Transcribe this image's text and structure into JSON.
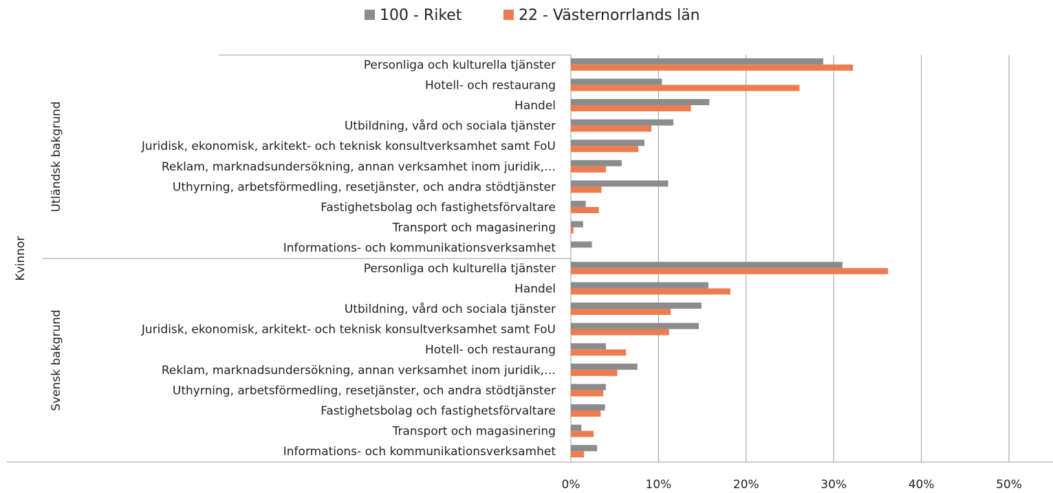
{
  "chart_data": {
    "type": "bar",
    "orientation": "horizontal",
    "outer_label": "Kvinnor",
    "group_labels": [
      "Utländsk bakgrund",
      "Svensk bakgrund"
    ],
    "categories": [
      "Personliga och kulturella tjänster",
      "Hotell- och restaurang",
      "Handel",
      "Utbildning, vård och sociala tjänster",
      "Juridisk, ekonomisk, arkitekt- och teknisk konsultverksamhet samt FoU",
      "Reklam, marknadsundersökning, annan verksamhet inom juridik,…",
      "Uthyrning, arbetsförmedling, resetjänster, och andra stödtjänster",
      "Fastighetsbolag och fastighetsförvaltare",
      "Transport och magasinering",
      "Informations- och kommunikationsverksamhet",
      "Personliga och kulturella tjänster",
      "Handel",
      "Utbildning, vård och sociala tjänster",
      "Juridisk, ekonomisk, arkitekt- och teknisk konsultverksamhet samt FoU",
      "Hotell- och restaurang",
      "Reklam, marknadsundersökning, annan verksamhet inom juridik,…",
      "Uthyrning, arbetsförmedling, resetjänster, och andra stödtjänster",
      "Fastighetsbolag och fastighetsförvaltare",
      "Transport och magasinering",
      "Informations- och kommunikationsverksamhet"
    ],
    "series": [
      {
        "name": "100 - Riket",
        "color": "#8c8c8c",
        "values": [
          28.8,
          10.4,
          15.8,
          11.7,
          8.4,
          5.8,
          11.1,
          1.7,
          1.4,
          2.4,
          31.0,
          15.7,
          14.9,
          14.6,
          4.0,
          7.6,
          4.0,
          3.9,
          1.2,
          3.0
        ]
      },
      {
        "name": "22 - Västernorrlands län",
        "color": "#ed7d50",
        "values": [
          32.2,
          26.1,
          13.7,
          9.2,
          7.7,
          4.0,
          3.5,
          3.2,
          0.3,
          0,
          36.2,
          18.2,
          11.4,
          11.2,
          6.3,
          5.3,
          3.7,
          3.4,
          2.6,
          1.5
        ]
      }
    ],
    "xlim": [
      0,
      50
    ],
    "xticks": [
      {
        "value": 0,
        "label": "0%"
      },
      {
        "value": 10,
        "label": "10%"
      },
      {
        "value": 20,
        "label": "20%"
      },
      {
        "value": 30,
        "label": "30%"
      },
      {
        "value": 40,
        "label": "40%"
      },
      {
        "value": 50,
        "label": "50%"
      }
    ],
    "grid": true,
    "legend": "top"
  }
}
